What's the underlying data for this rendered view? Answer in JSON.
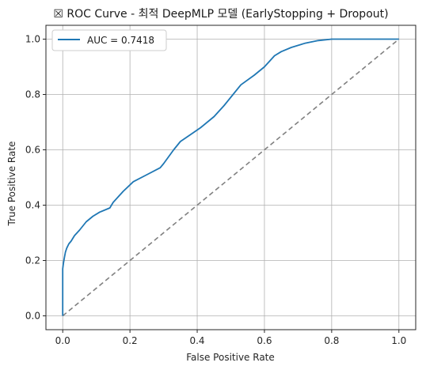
{
  "chart_data": {
    "type": "line",
    "title": "☒ ROC Curve - 최적 DeepMLP 모델 (EarlyStopping + Dropout)",
    "xlabel": "False Positive Rate",
    "ylabel": "True Positive Rate",
    "xlim": [
      -0.05,
      1.05
    ],
    "ylim": [
      -0.05,
      1.05
    ],
    "xticks": [
      "0.0",
      "0.2",
      "0.4",
      "0.6",
      "0.8",
      "1.0"
    ],
    "yticks": [
      "0.0",
      "0.2",
      "0.4",
      "0.6",
      "0.8",
      "1.0"
    ],
    "grid": true,
    "legend_position": "top-left",
    "series": [
      {
        "name": "AUC = 0.7418",
        "color": "#1f77b4",
        "style": "solid",
        "x": [
          0.0,
          0.0,
          0.002,
          0.005,
          0.008,
          0.012,
          0.018,
          0.025,
          0.035,
          0.05,
          0.07,
          0.09,
          0.11,
          0.14,
          0.15,
          0.18,
          0.21,
          0.25,
          0.29,
          0.3,
          0.33,
          0.35,
          0.38,
          0.41,
          0.45,
          0.48,
          0.5,
          0.53,
          0.57,
          0.6,
          0.63,
          0.65,
          0.68,
          0.72,
          0.76,
          0.8,
          0.85,
          1.0
        ],
        "y": [
          0.0,
          0.17,
          0.19,
          0.21,
          0.23,
          0.245,
          0.26,
          0.27,
          0.29,
          0.31,
          0.34,
          0.36,
          0.375,
          0.39,
          0.41,
          0.45,
          0.485,
          0.51,
          0.535,
          0.55,
          0.6,
          0.63,
          0.655,
          0.68,
          0.72,
          0.76,
          0.79,
          0.835,
          0.87,
          0.9,
          0.94,
          0.955,
          0.97,
          0.985,
          0.995,
          1.0,
          1.0,
          1.0
        ]
      },
      {
        "name": "",
        "color": "#808080",
        "style": "dashed",
        "x": [
          0.0,
          1.0
        ],
        "y": [
          0.0,
          1.0
        ]
      }
    ]
  }
}
